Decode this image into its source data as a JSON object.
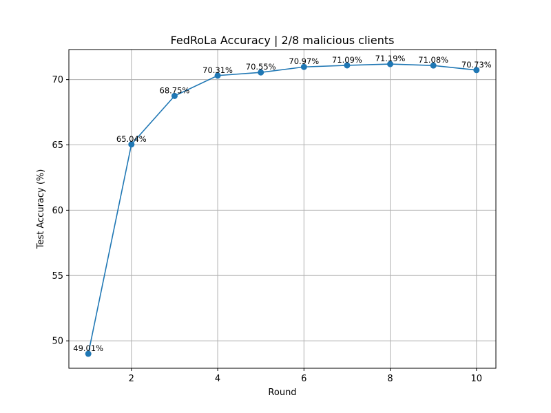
{
  "chart_data": {
    "type": "line",
    "title": "FedRoLa Accuracy | 2/8 malicious clients",
    "xlabel": "Round",
    "ylabel": "Test Accuracy (%)",
    "xlim": [
      0.55,
      10.45
    ],
    "ylim": [
      47.9,
      72.3
    ],
    "xticks": [
      2,
      4,
      6,
      8,
      10
    ],
    "yticks": [
      50,
      55,
      60,
      65,
      70
    ],
    "grid": true,
    "color": "#1f77b4",
    "series": [
      {
        "x": [
          1,
          2,
          3,
          4,
          5,
          6,
          7,
          8,
          9,
          10
        ],
        "values": [
          49.01,
          65.04,
          68.75,
          70.31,
          70.55,
          70.97,
          71.09,
          71.19,
          71.08,
          70.73
        ],
        "labels": [
          "49.01%",
          "65.04%",
          "68.75%",
          "70.31%",
          "70.55%",
          "70.97%",
          "71.09%",
          "71.19%",
          "71.08%",
          "70.73%"
        ]
      }
    ]
  }
}
